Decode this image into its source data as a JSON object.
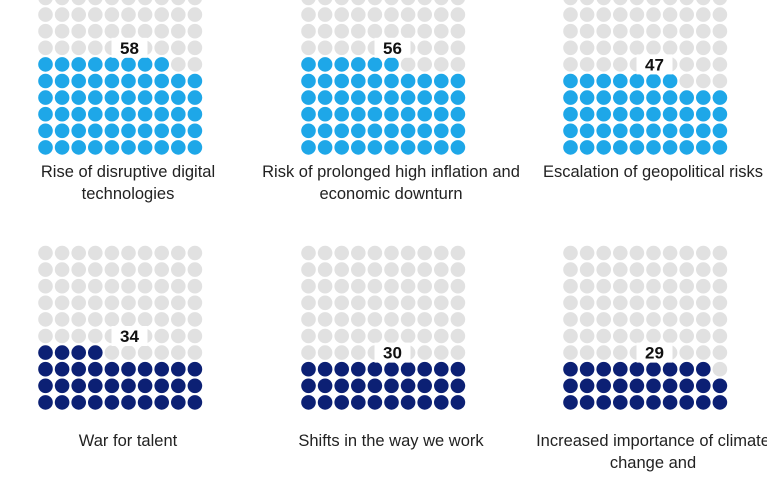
{
  "chart_data": {
    "type": "waffle",
    "total": 100,
    "colors": {
      "empty": "#e1e1e1",
      "light": "#1ea7e8",
      "dark": "#0c2074"
    },
    "items": [
      {
        "label": "Rise of disruptive digital technologies",
        "value": 58,
        "color": "light"
      },
      {
        "label": "Risk of prolonged high inflation and economic downturn",
        "value": 56,
        "color": "light"
      },
      {
        "label": "Escalation of geopolitical risks",
        "value": 47,
        "color": "light"
      },
      {
        "label": "War for talent",
        "value": 34,
        "color": "dark"
      },
      {
        "label": "Shifts in the way we work",
        "value": 30,
        "color": "dark"
      },
      {
        "label": "Increased importance of climate change and",
        "value": 29,
        "color": "dark"
      }
    ]
  },
  "panels": [
    {
      "label": "Rise of disruptive digital technologies",
      "value": "58"
    },
    {
      "label": "Risk of prolonged high inflation and economic downturn",
      "value": "56"
    },
    {
      "label": "Escalation of geopolitical risks",
      "value": "47"
    },
    {
      "label": "War for talent",
      "value": "34"
    },
    {
      "label": "Shifts in the way we work",
      "value": "30"
    },
    {
      "label": "Increased importance of climate change and",
      "value": "29"
    }
  ]
}
